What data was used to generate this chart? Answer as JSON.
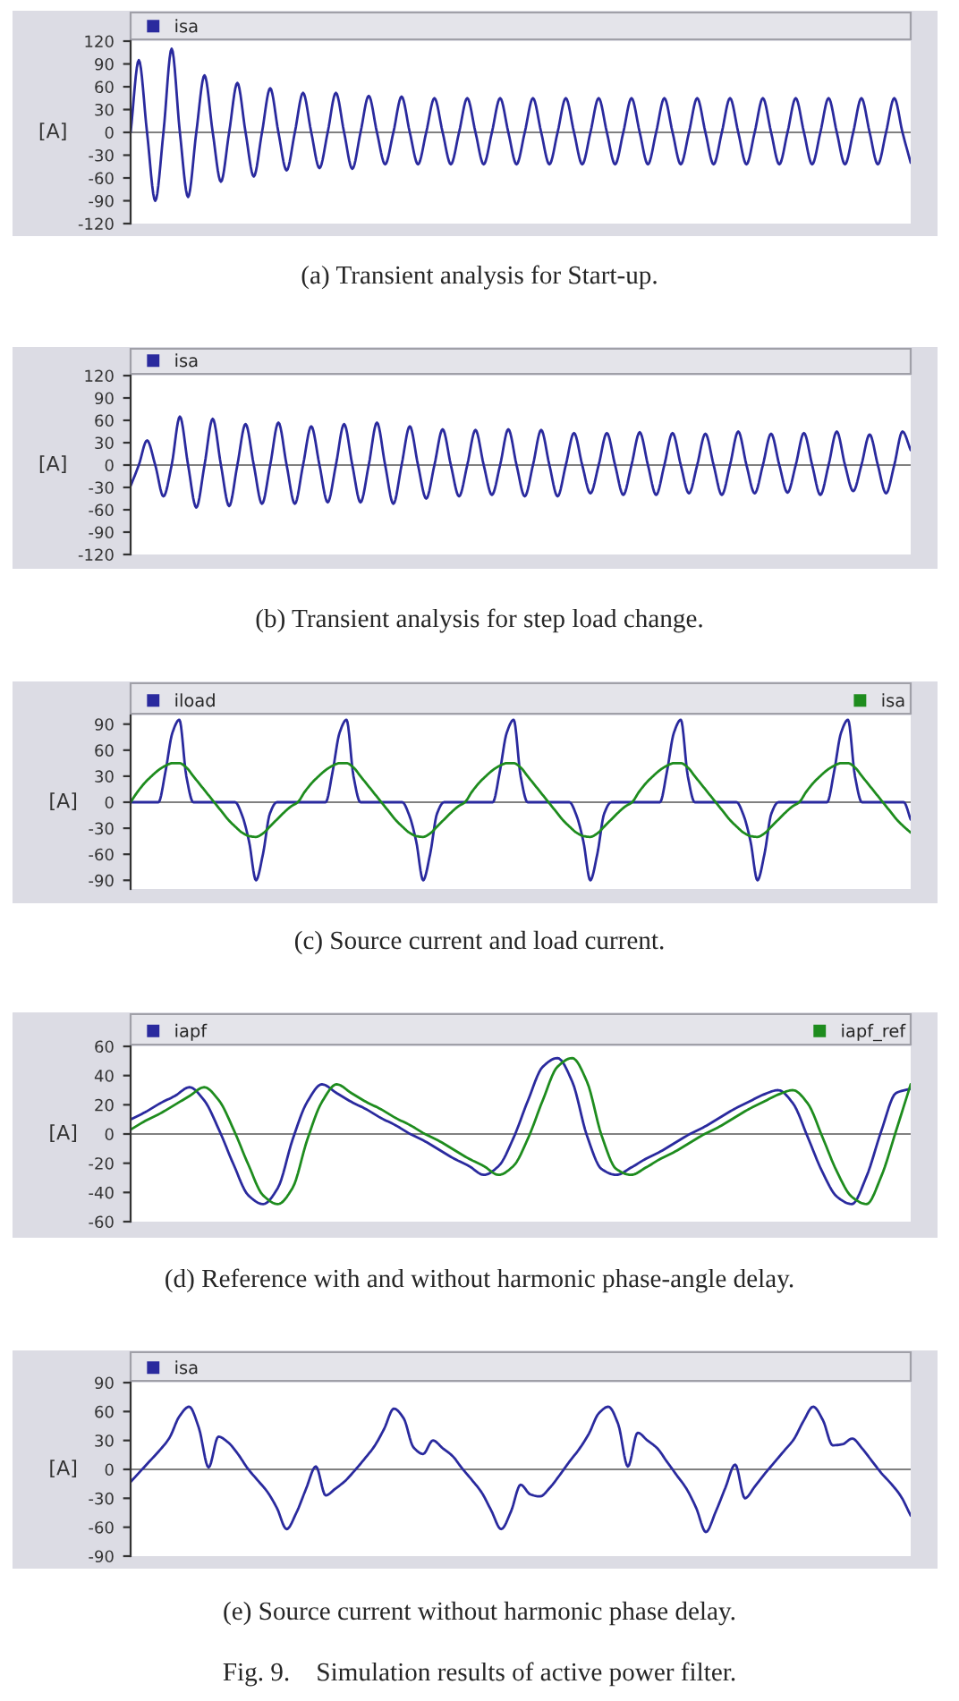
{
  "chart_data": [
    {
      "type": "line",
      "title": "(a) Transient analysis for Start-up.",
      "ylabel": "[A]",
      "categories": [
        null,
        null,
        null,
        null,
        null,
        null,
        null,
        null,
        null,
        null,
        null,
        null,
        null,
        null,
        null,
        null,
        null,
        null,
        null,
        null,
        null,
        null,
        null,
        null,
        null,
        null,
        null,
        null,
        null,
        null,
        null,
        null,
        null,
        null,
        null,
        null,
        null,
        null,
        null,
        null,
        null,
        null,
        null,
        null,
        null,
        null,
        null,
        null,
        null,
        null,
        null,
        null,
        null,
        null,
        null,
        null,
        null,
        null,
        null,
        null,
        null,
        null,
        null,
        null,
        null,
        null,
        null,
        null,
        null,
        null,
        null,
        null,
        null,
        null,
        null,
        null,
        null,
        null,
        null,
        null,
        null,
        null,
        null,
        null,
        null,
        null,
        null,
        null,
        null,
        null,
        null,
        null,
        null,
        null,
        null,
        null
      ],
      "ylim": [
        -120,
        120
      ],
      "yticks": [
        -120,
        -90,
        -60,
        -30,
        0,
        30,
        60,
        90,
        120
      ],
      "tick_labels": "y",
      "grid": false,
      "legend": "top",
      "ref_lines": [
        {
          "axis": "y",
          "value": 0,
          "color": "#808080"
        }
      ],
      "series": [
        {
          "name": "isa",
          "color": "#2a2a9e",
          "values": [
            0,
            95,
            0,
            -90,
            0,
            110,
            0,
            -85,
            0,
            75,
            0,
            -65,
            0,
            65,
            0,
            -58,
            0,
            58,
            0,
            -50,
            0,
            52,
            0,
            -47,
            0,
            52,
            0,
            -48,
            0,
            48,
            0,
            -42,
            0,
            47,
            0,
            -42,
            0,
            45,
            0,
            -42,
            0,
            45,
            0,
            -42,
            0,
            45,
            0,
            -42,
            0,
            45,
            0,
            -42,
            0,
            45,
            0,
            -42,
            0,
            45,
            0,
            -42,
            0,
            45,
            0,
            -42,
            0,
            45,
            0,
            -42,
            0,
            45,
            0,
            -42,
            0,
            45,
            0,
            -42,
            0,
            45,
            0,
            -42,
            0,
            45,
            0,
            -42,
            0,
            45,
            0,
            -42,
            0,
            45,
            0,
            -42,
            0,
            45,
            0,
            -40
          ]
        }
      ]
    },
    {
      "type": "line",
      "title": "(b) Transient analysis for step load change.",
      "ylabel": "[A]",
      "categories": [
        null,
        null,
        null,
        null,
        null,
        null,
        null,
        null,
        null,
        null,
        null,
        null,
        null,
        null,
        null,
        null,
        null,
        null,
        null,
        null,
        null,
        null,
        null,
        null,
        null,
        null,
        null,
        null,
        null,
        null,
        null,
        null,
        null,
        null,
        null,
        null,
        null,
        null,
        null,
        null,
        null,
        null,
        null,
        null,
        null,
        null,
        null,
        null,
        null,
        null,
        null,
        null,
        null,
        null,
        null,
        null,
        null,
        null,
        null,
        null,
        null,
        null,
        null,
        null,
        null,
        null,
        null,
        null,
        null,
        null,
        null,
        null,
        null,
        null,
        null,
        null,
        null,
        null,
        null,
        null,
        null,
        null,
        null,
        null,
        null,
        null,
        null,
        null,
        null,
        null,
        null,
        null,
        null,
        null,
        null,
        null
      ],
      "ylim": [
        -120,
        120
      ],
      "yticks": [
        -120,
        -90,
        -60,
        -30,
        0,
        30,
        60,
        90,
        120
      ],
      "tick_labels": "y",
      "grid": false,
      "legend": "top",
      "ref_lines": [
        {
          "axis": "y",
          "value": 0,
          "color": "#808080"
        }
      ],
      "series": [
        {
          "name": "isa",
          "color": "#2a2a9e",
          "values": [
            -28,
            0,
            33,
            0,
            -42,
            0,
            65,
            0,
            -57,
            0,
            62,
            0,
            -55,
            0,
            55,
            0,
            -52,
            0,
            57,
            0,
            -52,
            0,
            52,
            0,
            -50,
            0,
            55,
            0,
            -50,
            0,
            57,
            0,
            -52,
            0,
            52,
            0,
            -45,
            0,
            48,
            0,
            -42,
            0,
            47,
            0,
            -40,
            0,
            48,
            0,
            -42,
            0,
            47,
            0,
            -42,
            0,
            43,
            0,
            -38,
            0,
            43,
            0,
            -40,
            0,
            44,
            0,
            -40,
            0,
            43,
            0,
            -38,
            0,
            42,
            0,
            -40,
            0,
            45,
            0,
            -38,
            0,
            42,
            0,
            -37,
            0,
            43,
            0,
            -40,
            0,
            45,
            0,
            -35,
            0,
            41,
            0,
            -38,
            0,
            45,
            20
          ]
        }
      ]
    },
    {
      "type": "line",
      "title": "(c) Source current and load current.",
      "ylabel": "[A]",
      "categories": [
        null,
        null,
        null,
        null,
        null,
        null,
        null,
        null,
        null,
        null,
        null,
        null,
        null,
        null,
        null,
        null,
        null,
        null,
        null,
        null,
        null,
        null,
        null,
        null,
        null,
        null,
        null,
        null,
        null,
        null,
        null,
        null,
        null,
        null,
        null,
        null,
        null,
        null,
        null,
        null,
        null,
        null,
        null,
        null,
        null,
        null,
        null,
        null,
        null,
        null,
        null,
        null,
        null,
        null,
        null,
        null,
        null,
        null,
        null,
        null,
        null,
        null,
        null,
        null,
        null,
        null,
        null,
        null,
        null,
        null,
        null,
        null,
        null,
        null,
        null,
        null,
        null,
        null,
        null,
        null,
        null,
        null,
        null,
        null,
        null,
        null,
        null,
        null,
        null,
        null,
        null,
        null,
        null,
        null,
        null,
        null,
        null,
        null,
        null,
        null,
        null,
        null,
        null,
        null,
        null,
        null,
        null,
        null,
        null,
        null,
        null,
        null,
        null
      ],
      "ylim": [
        -100,
        100
      ],
      "yticks": [
        -90,
        -60,
        -30,
        0,
        30,
        60,
        90
      ],
      "tick_labels": "y",
      "grid": false,
      "legend": "top",
      "ref_lines": [
        {
          "axis": "y",
          "value": 0,
          "color": "#808080"
        }
      ],
      "series": [
        {
          "name": "iload",
          "color": "#2a2a9e",
          "values": [
            0,
            0,
            0,
            0,
            0,
            35,
            80,
            95,
            30,
            0,
            0,
            0,
            0,
            0,
            0,
            0,
            -15,
            -45,
            -90,
            -60,
            -13,
            0,
            0,
            0,
            0,
            0,
            0,
            0,
            0,
            35,
            80,
            95,
            30,
            0,
            0,
            0,
            0,
            0,
            0,
            0,
            -15,
            -45,
            -90,
            -60,
            -13,
            0,
            0,
            0,
            0,
            0,
            0,
            0,
            0,
            35,
            80,
            95,
            30,
            0,
            0,
            0,
            0,
            0,
            0,
            0,
            -15,
            -45,
            -90,
            -60,
            -13,
            0,
            0,
            0,
            0,
            0,
            0,
            0,
            0,
            35,
            80,
            95,
            30,
            0,
            0,
            0,
            0,
            0,
            0,
            0,
            -15,
            -45,
            -90,
            -60,
            -13,
            0,
            0,
            0,
            0,
            0,
            0,
            0,
            0,
            35,
            80,
            95,
            30,
            0,
            0,
            0,
            0,
            0,
            0,
            0,
            -20
          ]
        },
        {
          "name": "isa",
          "color": "#1e8c1e",
          "values": [
            0,
            12,
            22,
            30,
            37,
            42,
            45,
            45,
            40,
            30,
            20,
            10,
            0,
            -10,
            -20,
            -28,
            -35,
            -39,
            -40,
            -36,
            -28,
            -20,
            -12,
            -5,
            0,
            12,
            22,
            30,
            37,
            42,
            45,
            45,
            40,
            30,
            20,
            10,
            0,
            -10,
            -20,
            -28,
            -35,
            -39,
            -40,
            -36,
            -28,
            -20,
            -12,
            -5,
            0,
            12,
            22,
            30,
            37,
            42,
            45,
            45,
            40,
            30,
            20,
            10,
            0,
            -10,
            -20,
            -28,
            -35,
            -39,
            -40,
            -36,
            -28,
            -20,
            -12,
            -5,
            0,
            12,
            22,
            30,
            37,
            42,
            45,
            45,
            40,
            30,
            20,
            10,
            0,
            -10,
            -20,
            -28,
            -35,
            -39,
            -40,
            -36,
            -28,
            -20,
            -12,
            -5,
            0,
            12,
            22,
            30,
            37,
            42,
            45,
            45,
            40,
            30,
            20,
            10,
            0,
            -10,
            -20,
            -28,
            -35
          ]
        }
      ]
    },
    {
      "type": "line",
      "title": "(d) Reference with and without harmonic phase-angle delay.",
      "ylabel": "[A]",
      "categories": [
        null,
        null,
        null,
        null,
        null,
        null,
        null,
        null,
        null,
        null,
        null,
        null,
        null,
        null,
        null,
        null,
        null,
        null,
        null,
        null,
        null,
        null,
        null,
        null,
        null,
        null,
        null,
        null,
        null,
        null,
        null,
        null,
        null,
        null,
        null,
        null,
        null,
        null,
        null,
        null,
        null,
        null,
        null,
        null,
        null,
        null,
        null,
        null,
        null,
        null,
        null,
        null,
        null,
        null
      ],
      "ylim": [
        -60,
        60
      ],
      "yticks": [
        -60,
        -40,
        -20,
        0,
        20,
        40,
        60
      ],
      "tick_labels": "y",
      "grid": false,
      "legend": "top",
      "ref_lines": [
        {
          "axis": "y",
          "value": 0,
          "color": "#808080"
        }
      ],
      "series": [
        {
          "name": "iapf",
          "color": "#2a2a9e",
          "values": [
            10,
            15,
            21,
            26,
            32,
            23,
            3,
            -21,
            -42,
            -48,
            -37,
            -4,
            22,
            34,
            28,
            22,
            17,
            11,
            6,
            0,
            -5,
            -11,
            -17,
            -22,
            -28,
            -22,
            -3,
            23,
            46,
            52,
            36,
            -1,
            -24,
            -28,
            -23,
            -17,
            -12,
            -6,
            0,
            5,
            11,
            17,
            22,
            27,
            30,
            21,
            -2,
            -26,
            -43,
            -48,
            -29,
            2,
            28,
            31
          ]
        },
        {
          "name": "iapf_ref",
          "color": "#1e8c1e",
          "values": [
            3,
            9,
            14,
            20,
            26,
            32,
            23,
            3,
            -21,
            -42,
            -48,
            -37,
            -4,
            22,
            34,
            28,
            22,
            17,
            11,
            6,
            0,
            -5,
            -11,
            -17,
            -22,
            -28,
            -22,
            -3,
            23,
            46,
            52,
            36,
            -1,
            -24,
            -28,
            -23,
            -17,
            -12,
            -6,
            0,
            5,
            11,
            17,
            22,
            27,
            30,
            21,
            -2,
            -26,
            -43,
            -48,
            -29,
            2,
            34
          ]
        }
      ]
    },
    {
      "type": "line",
      "title": "(e) Source current without harmonic phase delay.",
      "ylabel": "[A]",
      "annotations": [
        "Fig. 9.    Simulation results of active power filter."
      ],
      "categories": [
        null,
        null,
        null,
        null,
        null,
        null,
        null,
        null,
        null,
        null,
        null,
        null,
        null,
        null,
        null,
        null,
        null,
        null,
        null,
        null,
        null,
        null,
        null,
        null,
        null,
        null,
        null,
        null,
        null,
        null,
        null,
        null,
        null,
        null,
        null,
        null,
        null,
        null,
        null,
        null,
        null,
        null,
        null,
        null,
        null,
        null,
        null,
        null,
        null,
        null,
        null,
        null,
        null,
        null,
        null,
        null,
        null,
        null,
        null,
        null,
        null,
        null,
        null,
        null,
        null,
        null,
        null,
        null,
        null,
        null,
        null,
        null,
        null,
        null,
        null,
        null,
        null,
        null,
        null,
        null,
        null
      ],
      "ylim": [
        -90,
        90
      ],
      "yticks": [
        -90,
        -60,
        -30,
        0,
        30,
        60,
        90
      ],
      "tick_labels": "y",
      "grid": false,
      "legend": "top",
      "ref_lines": [
        {
          "axis": "y",
          "value": 0,
          "color": "#808080"
        }
      ],
      "series": [
        {
          "name": "isa",
          "color": "#2a2a9e",
          "values": [
            -13,
            -2,
            9,
            20,
            33,
            55,
            65,
            43,
            2,
            34,
            28,
            16,
            1,
            -11,
            -23,
            -40,
            -62,
            -45,
            -20,
            3,
            -27,
            -20,
            -12,
            -1,
            11,
            24,
            42,
            63,
            53,
            23,
            16,
            30,
            22,
            14,
            1,
            -11,
            -24,
            -43,
            -62,
            -44,
            -16,
            -26,
            -28,
            -19,
            -6,
            8,
            21,
            37,
            58,
            65,
            47,
            3,
            38,
            30,
            22,
            8,
            -6,
            -20,
            -40,
            -65,
            -44,
            -19,
            5,
            -30,
            -18,
            -5,
            7,
            19,
            31,
            50,
            65,
            51,
            25,
            26,
            32,
            22,
            9,
            -4,
            -15,
            -28,
            -48
          ]
        }
      ]
    }
  ]
}
